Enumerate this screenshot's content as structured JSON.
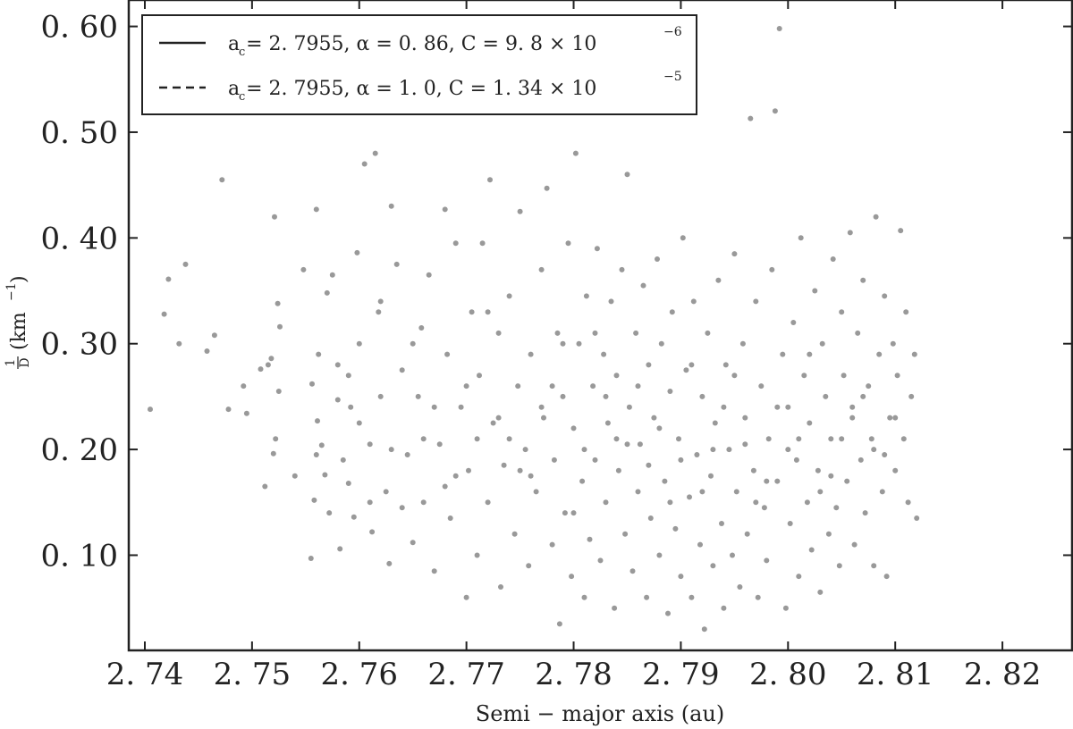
{
  "chart_data": {
    "type": "scatter",
    "xlabel": "Semi − major axis (au)",
    "ylabel_num": "1",
    "ylabel_den": "D",
    "ylabel_unit": "(km",
    "ylabel_exp": "−1",
    "xlim": [
      2.7385,
      2.8265
    ],
    "ylim": [
      0.01,
      0.625
    ],
    "x_ticks": [
      2.74,
      2.75,
      2.76,
      2.77,
      2.78,
      2.79,
      2.8,
      2.81,
      2.82
    ],
    "x_tick_labels": [
      "2. 74",
      "2. 75",
      "2. 76",
      "2. 77",
      "2. 78",
      "2. 79",
      "2. 80",
      "2. 81",
      "2. 82"
    ],
    "y_ticks": [
      0.1,
      0.2,
      0.3,
      0.4,
      0.5,
      0.6
    ],
    "y_tick_labels": [
      "0. 10",
      "0. 20",
      "0. 30",
      "0. 40",
      "0. 50",
      "0. 60"
    ],
    "grid": false,
    "legend_position": "top-left",
    "point_color": "#999999",
    "line_color": "#222222",
    "series": [
      {
        "label": "a_c = 2.7955, α = 0.86, C = 9.8 × 10^−6",
        "legend_text": "a = 2. 7955,  α = 0. 86,  C = 9. 8 × 10",
        "legend_sub": "c",
        "legend_exp": "−6",
        "style": "solid",
        "a_c": 2.7955,
        "alpha": 0.86,
        "C": 9.8e-06
      },
      {
        "label": "a_c = 2.7955, α = 1.0, C = 1.34 × 10^−5",
        "legend_text": "a = 2. 7955,  α = 1. 0,  C = 1. 34 × 10",
        "legend_sub": "c",
        "legend_exp": "−5",
        "style": "dashed",
        "a_c": 2.7955,
        "alpha": 1.0,
        "C": 1.34e-05
      }
    ],
    "points": [
      [
        2.7405,
        0.238
      ],
      [
        2.7418,
        0.328
      ],
      [
        2.7422,
        0.361
      ],
      [
        2.7432,
        0.3
      ],
      [
        2.7438,
        0.375
      ],
      [
        2.7458,
        0.293
      ],
      [
        2.7465,
        0.308
      ],
      [
        2.7472,
        0.455
      ],
      [
        2.7478,
        0.238
      ],
      [
        2.7492,
        0.26
      ],
      [
        2.7495,
        0.234
      ],
      [
        2.7508,
        0.276
      ],
      [
        2.7512,
        0.165
      ],
      [
        2.7515,
        0.28
      ],
      [
        2.7518,
        0.286
      ],
      [
        2.752,
        0.196
      ],
      [
        2.7521,
        0.42
      ],
      [
        2.7522,
        0.21
      ],
      [
        2.7524,
        0.338
      ],
      [
        2.7525,
        0.255
      ],
      [
        2.7526,
        0.316
      ],
      [
        2.754,
        0.175
      ],
      [
        2.7548,
        0.37
      ],
      [
        2.7555,
        0.097
      ],
      [
        2.7556,
        0.262
      ],
      [
        2.7558,
        0.152
      ],
      [
        2.756,
        0.427
      ],
      [
        2.7561,
        0.227
      ],
      [
        2.7562,
        0.29
      ],
      [
        2.7565,
        0.204
      ],
      [
        2.7568,
        0.176
      ],
      [
        2.757,
        0.348
      ],
      [
        2.7572,
        0.14
      ],
      [
        2.7575,
        0.365
      ],
      [
        2.758,
        0.247
      ],
      [
        2.7582,
        0.106
      ],
      [
        2.7585,
        0.19
      ],
      [
        2.759,
        0.168
      ],
      [
        2.7592,
        0.24
      ],
      [
        2.7595,
        0.136
      ],
      [
        2.7598,
        0.386
      ],
      [
        2.76,
        0.3
      ],
      [
        2.7605,
        0.47
      ],
      [
        2.761,
        0.205
      ],
      [
        2.7612,
        0.122
      ],
      [
        2.7615,
        0.48
      ],
      [
        2.7618,
        0.33
      ],
      [
        2.762,
        0.25
      ],
      [
        2.7625,
        0.16
      ],
      [
        2.7628,
        0.092
      ],
      [
        2.763,
        0.43
      ],
      [
        2.7635,
        0.375
      ],
      [
        2.764,
        0.275
      ],
      [
        2.7645,
        0.195
      ],
      [
        2.765,
        0.112
      ],
      [
        2.7655,
        0.25
      ],
      [
        2.7658,
        0.315
      ],
      [
        2.766,
        0.15
      ],
      [
        2.7665,
        0.365
      ],
      [
        2.767,
        0.085
      ],
      [
        2.7675,
        0.205
      ],
      [
        2.768,
        0.427
      ],
      [
        2.7682,
        0.29
      ],
      [
        2.7685,
        0.135
      ],
      [
        2.769,
        0.395
      ],
      [
        2.7695,
        0.24
      ],
      [
        2.77,
        0.06
      ],
      [
        2.7702,
        0.18
      ],
      [
        2.7705,
        0.33
      ],
      [
        2.771,
        0.1
      ],
      [
        2.7712,
        0.27
      ],
      [
        2.7715,
        0.395
      ],
      [
        2.772,
        0.15
      ],
      [
        2.7722,
        0.455
      ],
      [
        2.7725,
        0.225
      ],
      [
        2.773,
        0.31
      ],
      [
        2.7732,
        0.07
      ],
      [
        2.7735,
        0.185
      ],
      [
        2.774,
        0.345
      ],
      [
        2.7745,
        0.12
      ],
      [
        2.7748,
        0.26
      ],
      [
        2.775,
        0.425
      ],
      [
        2.7755,
        0.2
      ],
      [
        2.7758,
        0.09
      ],
      [
        2.776,
        0.29
      ],
      [
        2.7765,
        0.16
      ],
      [
        2.777,
        0.37
      ],
      [
        2.7772,
        0.23
      ],
      [
        2.7775,
        0.447
      ],
      [
        2.778,
        0.11
      ],
      [
        2.7782,
        0.19
      ],
      [
        2.7785,
        0.31
      ],
      [
        2.7787,
        0.035
      ],
      [
        2.779,
        0.25
      ],
      [
        2.7792,
        0.14
      ],
      [
        2.7795,
        0.395
      ],
      [
        2.7798,
        0.08
      ],
      [
        2.78,
        0.22
      ],
      [
        2.7802,
        0.48
      ],
      [
        2.7805,
        0.3
      ],
      [
        2.7808,
        0.17
      ],
      [
        2.781,
        0.06
      ],
      [
        2.7812,
        0.345
      ],
      [
        2.7815,
        0.115
      ],
      [
        2.7818,
        0.26
      ],
      [
        2.782,
        0.19
      ],
      [
        2.7822,
        0.39
      ],
      [
        2.7825,
        0.095
      ],
      [
        2.7828,
        0.29
      ],
      [
        2.783,
        0.15
      ],
      [
        2.7832,
        0.225
      ],
      [
        2.7835,
        0.34
      ],
      [
        2.7838,
        0.05
      ],
      [
        2.784,
        0.27
      ],
      [
        2.7842,
        0.18
      ],
      [
        2.7845,
        0.37
      ],
      [
        2.7848,
        0.12
      ],
      [
        2.785,
        0.46
      ],
      [
        2.7852,
        0.24
      ],
      [
        2.7855,
        0.085
      ],
      [
        2.7858,
        0.31
      ],
      [
        2.786,
        0.16
      ],
      [
        2.7862,
        0.205
      ],
      [
        2.7865,
        0.355
      ],
      [
        2.7868,
        0.06
      ],
      [
        2.787,
        0.28
      ],
      [
        2.7872,
        0.135
      ],
      [
        2.7875,
        0.23
      ],
      [
        2.7878,
        0.38
      ],
      [
        2.788,
        0.1
      ],
      [
        2.7882,
        0.3
      ],
      [
        2.7885,
        0.17
      ],
      [
        2.7888,
        0.045
      ],
      [
        2.789,
        0.255
      ],
      [
        2.7892,
        0.33
      ],
      [
        2.7895,
        0.125
      ],
      [
        2.7898,
        0.21
      ],
      [
        2.79,
        0.08
      ],
      [
        2.7902,
        0.4
      ],
      [
        2.7905,
        0.275
      ],
      [
        2.7908,
        0.155
      ],
      [
        2.791,
        0.06
      ],
      [
        2.7912,
        0.34
      ],
      [
        2.7915,
        0.195
      ],
      [
        2.7918,
        0.11
      ],
      [
        2.792,
        0.25
      ],
      [
        2.7922,
        0.03
      ],
      [
        2.7925,
        0.31
      ],
      [
        2.7928,
        0.175
      ],
      [
        2.793,
        0.09
      ],
      [
        2.7932,
        0.225
      ],
      [
        2.7935,
        0.36
      ],
      [
        2.7938,
        0.13
      ],
      [
        2.794,
        0.05
      ],
      [
        2.7942,
        0.28
      ],
      [
        2.7945,
        0.2
      ],
      [
        2.7948,
        0.1
      ],
      [
        2.795,
        0.385
      ],
      [
        2.7952,
        0.16
      ],
      [
        2.7955,
        0.07
      ],
      [
        2.7958,
        0.3
      ],
      [
        2.796,
        0.23
      ],
      [
        2.7962,
        0.12
      ],
      [
        2.7965,
        0.513
      ],
      [
        2.7968,
        0.18
      ],
      [
        2.797,
        0.34
      ],
      [
        2.7972,
        0.06
      ],
      [
        2.7975,
        0.26
      ],
      [
        2.7978,
        0.145
      ],
      [
        2.798,
        0.095
      ],
      [
        2.7982,
        0.21
      ],
      [
        2.7985,
        0.37
      ],
      [
        2.7988,
        0.52
      ],
      [
        2.799,
        0.17
      ],
      [
        2.7992,
        0.598
      ],
      [
        2.7995,
        0.29
      ],
      [
        2.7998,
        0.05
      ],
      [
        2.8,
        0.24
      ],
      [
        2.8002,
        0.13
      ],
      [
        2.8005,
        0.32
      ],
      [
        2.8008,
        0.19
      ],
      [
        2.801,
        0.08
      ],
      [
        2.8012,
        0.4
      ],
      [
        2.8015,
        0.27
      ],
      [
        2.8018,
        0.15
      ],
      [
        2.802,
        0.225
      ],
      [
        2.8022,
        0.105
      ],
      [
        2.8025,
        0.35
      ],
      [
        2.8028,
        0.18
      ],
      [
        2.803,
        0.065
      ],
      [
        2.8032,
        0.3
      ],
      [
        2.8035,
        0.25
      ],
      [
        2.8038,
        0.12
      ],
      [
        2.804,
        0.21
      ],
      [
        2.8042,
        0.38
      ],
      [
        2.8045,
        0.145
      ],
      [
        2.8048,
        0.09
      ],
      [
        2.805,
        0.33
      ],
      [
        2.8052,
        0.27
      ],
      [
        2.8055,
        0.17
      ],
      [
        2.8058,
        0.405
      ],
      [
        2.806,
        0.23
      ],
      [
        2.8062,
        0.11
      ],
      [
        2.8065,
        0.31
      ],
      [
        2.8068,
        0.19
      ],
      [
        2.807,
        0.36
      ],
      [
        2.8072,
        0.14
      ],
      [
        2.8075,
        0.26
      ],
      [
        2.8078,
        0.21
      ],
      [
        2.808,
        0.09
      ],
      [
        2.8082,
        0.42
      ],
      [
        2.8085,
        0.29
      ],
      [
        2.8088,
        0.16
      ],
      [
        2.809,
        0.345
      ],
      [
        2.8092,
        0.08
      ],
      [
        2.8095,
        0.23
      ],
      [
        2.8098,
        0.3
      ],
      [
        2.81,
        0.18
      ],
      [
        2.8102,
        0.27
      ],
      [
        2.8105,
        0.407
      ],
      [
        2.8108,
        0.21
      ],
      [
        2.811,
        0.33
      ],
      [
        2.8112,
        0.15
      ],
      [
        2.8115,
        0.25
      ],
      [
        2.8118,
        0.29
      ],
      [
        2.812,
        0.135
      ],
      [
        2.756,
        0.195
      ],
      [
        2.758,
        0.28
      ],
      [
        2.76,
        0.225
      ],
      [
        2.762,
        0.34
      ],
      [
        2.764,
        0.145
      ],
      [
        2.766,
        0.21
      ],
      [
        2.768,
        0.165
      ],
      [
        2.77,
        0.26
      ],
      [
        2.772,
        0.33
      ],
      [
        2.774,
        0.21
      ],
      [
        2.776,
        0.175
      ],
      [
        2.778,
        0.26
      ],
      [
        2.78,
        0.14
      ],
      [
        2.782,
        0.31
      ],
      [
        2.784,
        0.21
      ],
      [
        2.786,
        0.26
      ],
      [
        2.788,
        0.22
      ],
      [
        2.79,
        0.19
      ],
      [
        2.792,
        0.16
      ],
      [
        2.794,
        0.24
      ],
      [
        2.796,
        0.205
      ],
      [
        2.798,
        0.17
      ],
      [
        2.8,
        0.2
      ],
      [
        2.802,
        0.29
      ],
      [
        2.804,
        0.175
      ],
      [
        2.806,
        0.24
      ],
      [
        2.808,
        0.2
      ],
      [
        2.81,
        0.23
      ],
      [
        2.785,
        0.205
      ],
      [
        2.787,
        0.185
      ],
      [
        2.789,
        0.15
      ],
      [
        2.791,
        0.28
      ],
      [
        2.793,
        0.2
      ],
      [
        2.795,
        0.27
      ],
      [
        2.797,
        0.15
      ],
      [
        2.799,
        0.24
      ],
      [
        2.801,
        0.21
      ],
      [
        2.803,
        0.16
      ],
      [
        2.805,
        0.21
      ],
      [
        2.807,
        0.25
      ],
      [
        2.809,
        0.195
      ],
      [
        2.783,
        0.25
      ],
      [
        2.781,
        0.2
      ],
      [
        2.779,
        0.3
      ],
      [
        2.777,
        0.24
      ],
      [
        2.775,
        0.18
      ],
      [
        2.773,
        0.23
      ],
      [
        2.771,
        0.21
      ],
      [
        2.769,
        0.175
      ],
      [
        2.767,
        0.24
      ],
      [
        2.765,
        0.3
      ],
      [
        2.763,
        0.2
      ],
      [
        2.761,
        0.15
      ],
      [
        2.759,
        0.27
      ]
    ]
  }
}
